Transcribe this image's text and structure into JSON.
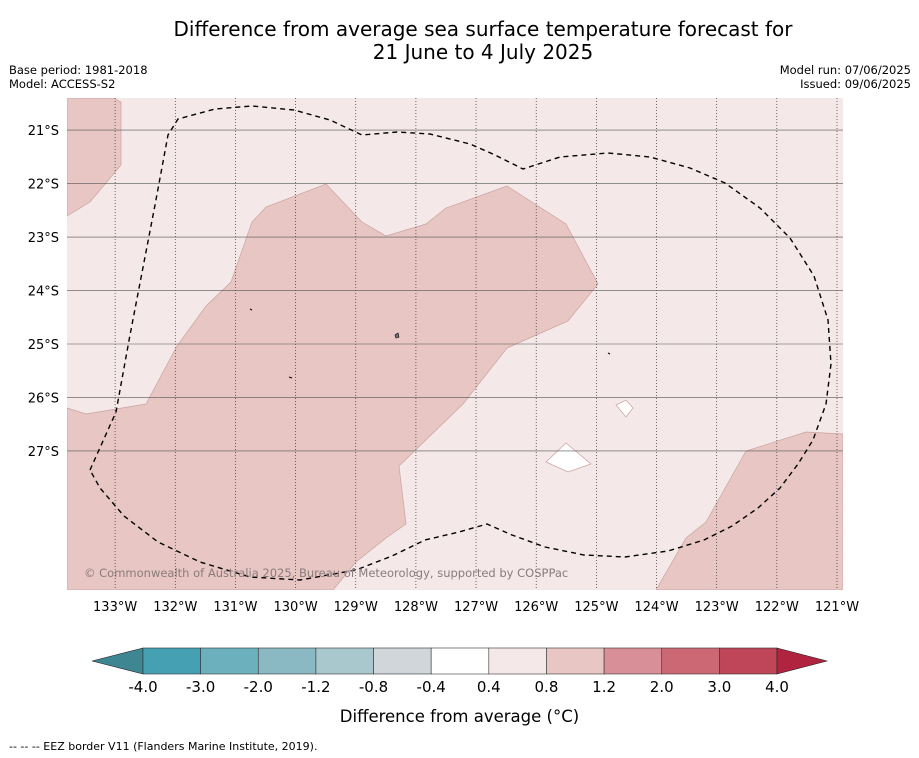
{
  "header": {
    "title_line1": "Difference from average sea surface temperature forecast for",
    "title_line2": "21 June to 4 July 2025",
    "base_period": "Base period: 1981-2018",
    "model": "Model: ACCESS-S2",
    "model_run": "Model run: 07/06/2025",
    "issued": "Issued: 09/06/2025"
  },
  "map": {
    "copyright": "© Commonwealth of Australia 2025, Bureau of Meteorology, supported by COSPPac",
    "lon_range": [
      -133.8,
      -120.9
    ],
    "lat_range": [
      -29.6,
      -20.4
    ],
    "lon_ticks": [
      {
        "value": -133,
        "label": "133°W"
      },
      {
        "value": -132,
        "label": "132°W"
      },
      {
        "value": -131,
        "label": "131°W"
      },
      {
        "value": -130,
        "label": "130°W"
      },
      {
        "value": -129,
        "label": "129°W"
      },
      {
        "value": -128,
        "label": "128°W"
      },
      {
        "value": -127,
        "label": "127°W"
      },
      {
        "value": -126,
        "label": "126°W"
      },
      {
        "value": -125,
        "label": "125°W"
      },
      {
        "value": -124,
        "label": "124°W"
      },
      {
        "value": -123,
        "label": "123°W"
      },
      {
        "value": -122,
        "label": "122°W"
      },
      {
        "value": -121,
        "label": "121°W"
      }
    ],
    "lat_ticks": [
      {
        "value": -21,
        "label": "21°S"
      },
      {
        "value": -22,
        "label": "22°S"
      },
      {
        "value": -23,
        "label": "23°S"
      },
      {
        "value": -24,
        "label": "24°S"
      },
      {
        "value": -25,
        "label": "25°S"
      },
      {
        "value": -26,
        "label": "26°S"
      },
      {
        "value": -27,
        "label": "27°S"
      }
    ],
    "colors": {
      "background_anomaly": "#f4e8e8",
      "warm_anomaly": "#e8c6c3",
      "warm_edge": "#c9a3a0",
      "neutral": "#ffffff",
      "eez_line": "#000000"
    }
  },
  "colorbar": {
    "tick_labels": [
      "-4.0",
      "-3.0",
      "-2.0",
      "-1.2",
      "-0.8",
      "-0.4",
      "0.4",
      "0.8",
      "1.2",
      "2.0",
      "3.0",
      "4.0"
    ],
    "segment_colors": [
      "#45a0b3",
      "#6cb0bd",
      "#8ab9c4",
      "#a9c8cd",
      "#d0d6d9",
      "#ffffff",
      "#f4e8e8",
      "#e8c6c3",
      "#d98f97",
      "#cc6873",
      "#be4658"
    ],
    "low_extend_color": "#3e8792",
    "high_extend_color": "#b02440",
    "label": "Difference from average (°C)"
  },
  "footnote": "--  --  -- EEZ border V11 (Flanders Marine Institute, 2019)."
}
